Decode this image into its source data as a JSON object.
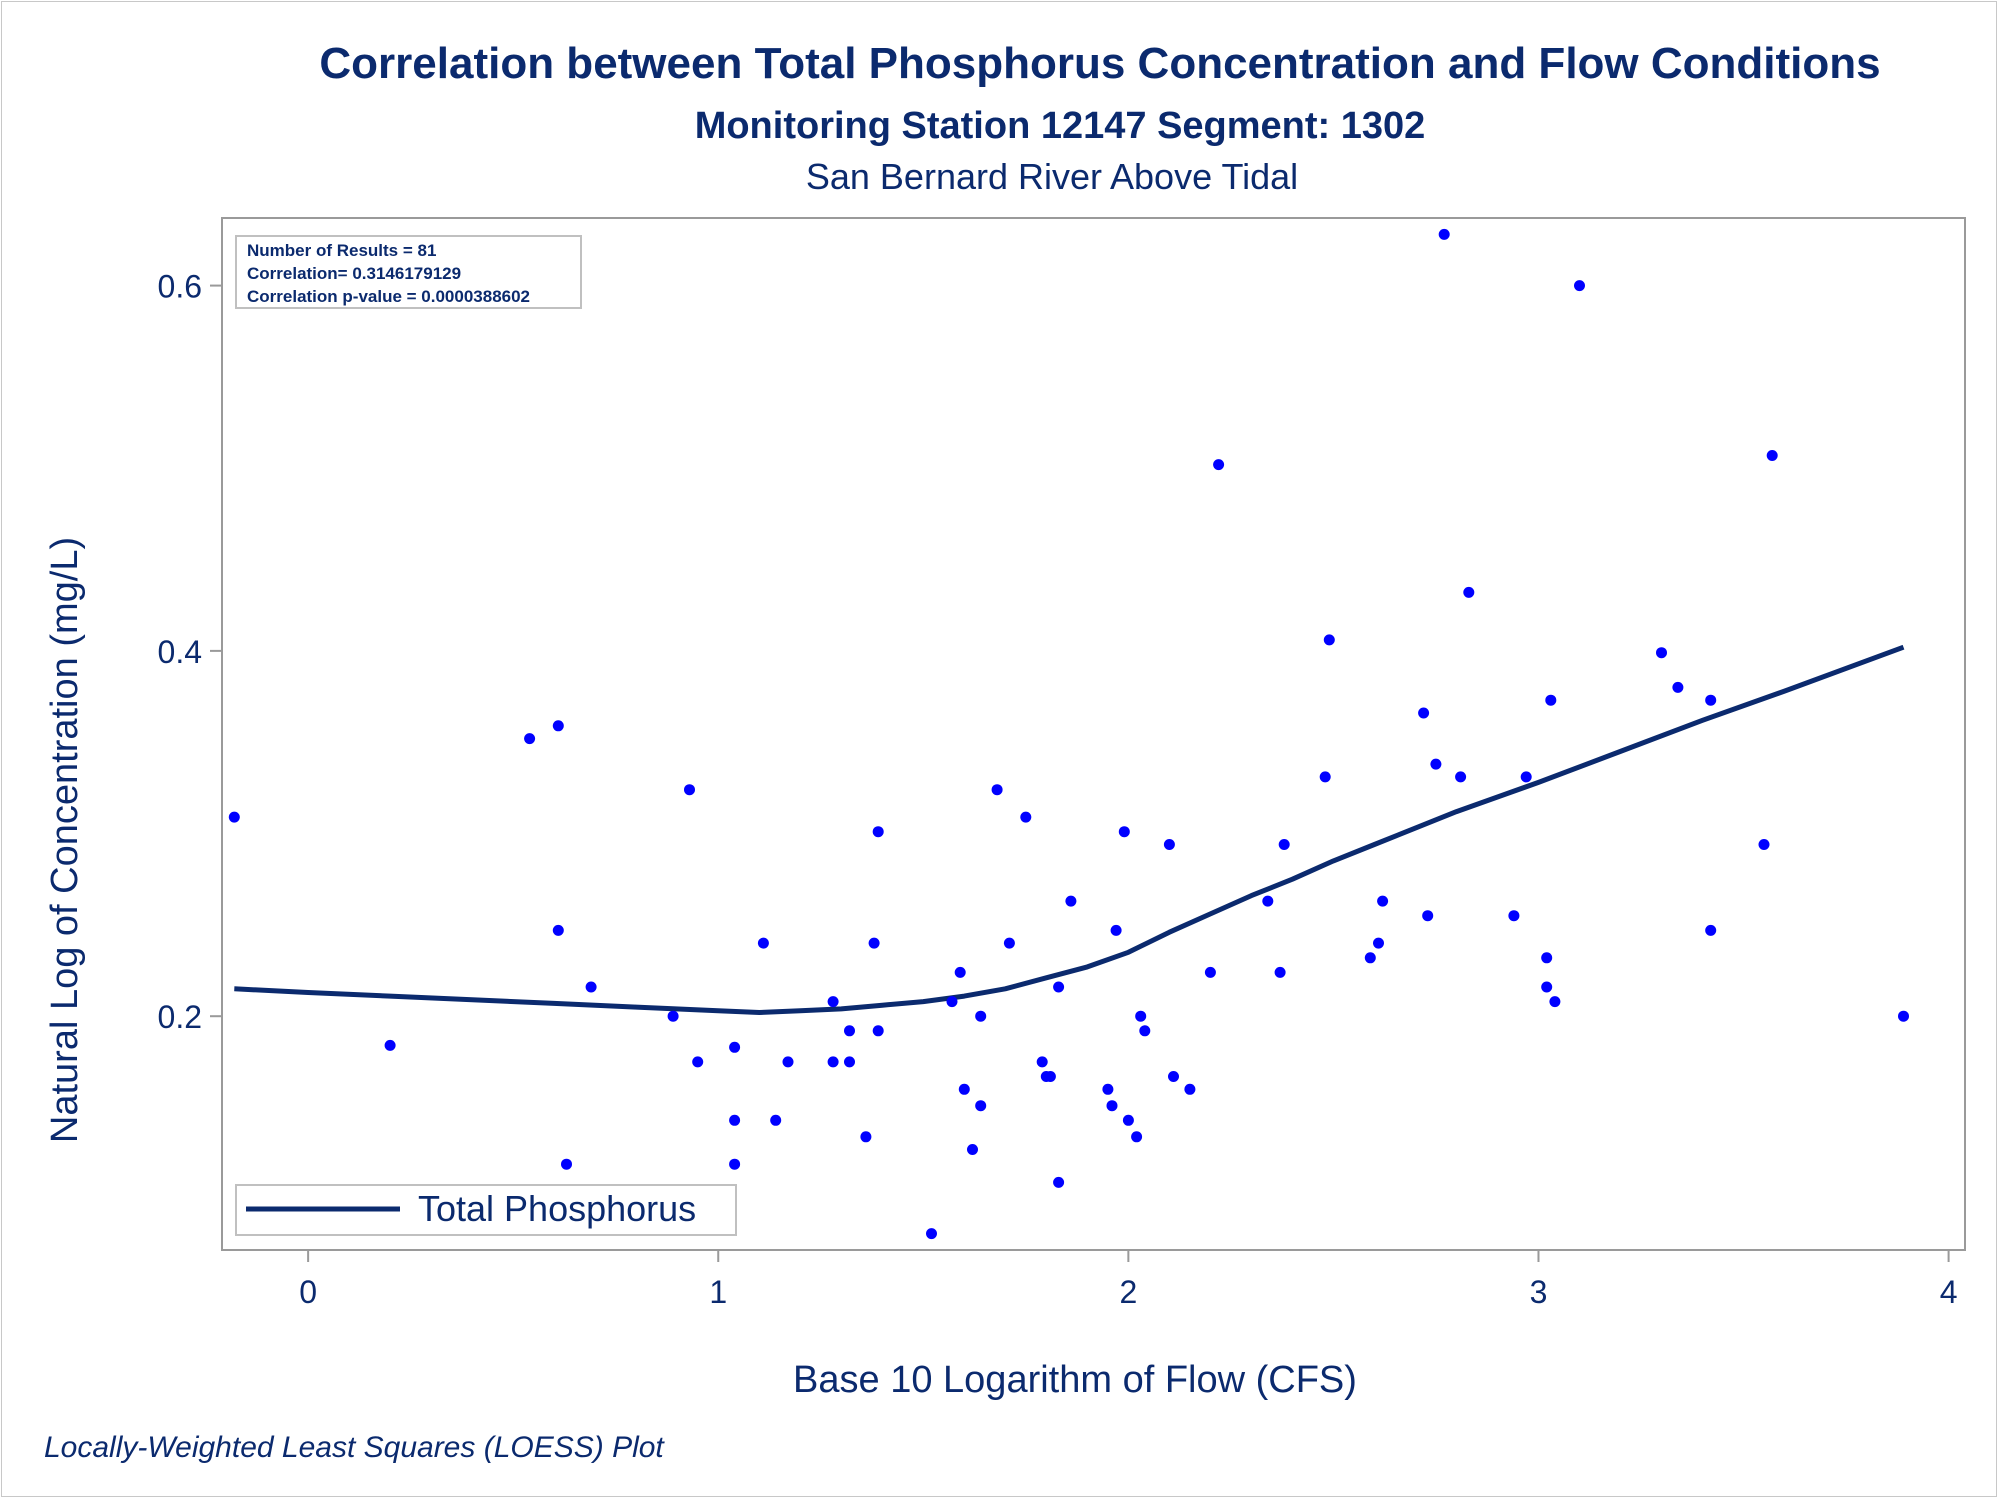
{
  "chart_data": {
    "type": "scatter",
    "title": "Correlation between Total Phosphorus Concentration and Flow Conditions",
    "subtitle": "Monitoring Station 12147 Segment: 1302",
    "subtitle2": "San Bernard River Above Tidal",
    "xlabel": "Base 10 Logarithm of Flow (CFS)",
    "ylabel": "Natural Log of Concentration (mg/L)",
    "footnote": "Locally-Weighted Least Squares (LOESS) Plot",
    "xlim": [
      -0.21,
      4.04
    ],
    "ylim": [
      0.072,
      0.637
    ],
    "x_ticks": [
      "0",
      "1",
      "2",
      "3",
      "4"
    ],
    "y_ticks": [
      "0.2",
      "0.4",
      "0.6"
    ],
    "stats": [
      "Number of Results = 81",
      "Correlation= 0.3146179129",
      "Correlation p-value = 0.0000388602"
    ],
    "legend": {
      "label": "Total Phosphorus",
      "position": "bottom-left"
    },
    "grid": false,
    "colors": {
      "points": "#0000ff",
      "line": "#0b2a6e",
      "text": "#0b2a6e",
      "axis": "#9a9a9a"
    },
    "points": [
      [
        -0.18,
        0.309
      ],
      [
        0.2,
        0.184
      ],
      [
        0.54,
        0.352
      ],
      [
        0.61,
        0.359
      ],
      [
        0.61,
        0.247
      ],
      [
        0.63,
        0.119
      ],
      [
        0.69,
        0.216
      ],
      [
        0.89,
        0.2
      ],
      [
        0.93,
        0.324
      ],
      [
        0.95,
        0.175
      ],
      [
        1.04,
        0.183
      ],
      [
        1.04,
        0.143
      ],
      [
        1.04,
        0.119
      ],
      [
        1.11,
        0.24
      ],
      [
        1.14,
        0.143
      ],
      [
        1.17,
        0.175
      ],
      [
        1.28,
        0.175
      ],
      [
        1.28,
        0.208
      ],
      [
        1.32,
        0.192
      ],
      [
        1.32,
        0.175
      ],
      [
        1.36,
        0.134
      ],
      [
        1.38,
        0.24
      ],
      [
        1.39,
        0.192
      ],
      [
        1.39,
        0.301
      ],
      [
        1.52,
        0.081
      ],
      [
        1.57,
        0.208
      ],
      [
        1.59,
        0.224
      ],
      [
        1.6,
        0.16
      ],
      [
        1.62,
        0.127
      ],
      [
        1.64,
        0.2
      ],
      [
        1.64,
        0.151
      ],
      [
        1.68,
        0.324
      ],
      [
        1.71,
        0.24
      ],
      [
        1.75,
        0.309
      ],
      [
        1.79,
        0.175
      ],
      [
        1.8,
        0.167
      ],
      [
        1.81,
        0.167
      ],
      [
        1.83,
        0.216
      ],
      [
        1.83,
        0.109
      ],
      [
        1.86,
        0.263
      ],
      [
        1.95,
        0.16
      ],
      [
        1.96,
        0.151
      ],
      [
        1.97,
        0.247
      ],
      [
        1.99,
        0.301
      ],
      [
        2.0,
        0.143
      ],
      [
        2.02,
        0.134
      ],
      [
        2.03,
        0.2
      ],
      [
        2.04,
        0.192
      ],
      [
        2.1,
        0.294
      ],
      [
        2.11,
        0.167
      ],
      [
        2.15,
        0.16
      ],
      [
        2.2,
        0.224
      ],
      [
        2.22,
        0.502
      ],
      [
        2.34,
        0.263
      ],
      [
        2.37,
        0.224
      ],
      [
        2.38,
        0.294
      ],
      [
        2.48,
        0.331
      ],
      [
        2.49,
        0.406
      ],
      [
        2.59,
        0.232
      ],
      [
        2.61,
        0.24
      ],
      [
        2.62,
        0.263
      ],
      [
        2.72,
        0.366
      ],
      [
        2.73,
        0.255
      ],
      [
        2.75,
        0.338
      ],
      [
        2.77,
        0.628
      ],
      [
        2.81,
        0.331
      ],
      [
        2.83,
        0.432
      ],
      [
        2.94,
        0.255
      ],
      [
        2.97,
        0.331
      ],
      [
        3.02,
        0.232
      ],
      [
        3.02,
        0.216
      ],
      [
        3.03,
        0.373
      ],
      [
        3.04,
        0.208
      ],
      [
        3.1,
        0.6
      ],
      [
        3.3,
        0.399
      ],
      [
        3.34,
        0.38
      ],
      [
        3.42,
        0.373
      ],
      [
        3.42,
        0.247
      ],
      [
        3.55,
        0.294
      ],
      [
        3.57,
        0.507
      ],
      [
        3.89,
        0.2
      ]
    ],
    "loess": [
      [
        -0.18,
        0.215
      ],
      [
        0.0,
        0.213
      ],
      [
        0.2,
        0.211
      ],
      [
        0.4,
        0.209
      ],
      [
        0.6,
        0.207
      ],
      [
        0.8,
        0.205
      ],
      [
        1.0,
        0.203
      ],
      [
        1.1,
        0.202
      ],
      [
        1.2,
        0.203
      ],
      [
        1.3,
        0.204
      ],
      [
        1.4,
        0.206
      ],
      [
        1.5,
        0.208
      ],
      [
        1.6,
        0.211
      ],
      [
        1.7,
        0.215
      ],
      [
        1.8,
        0.221
      ],
      [
        1.9,
        0.227
      ],
      [
        2.0,
        0.235
      ],
      [
        2.1,
        0.246
      ],
      [
        2.2,
        0.256
      ],
      [
        2.3,
        0.266
      ],
      [
        2.4,
        0.275
      ],
      [
        2.5,
        0.285
      ],
      [
        2.6,
        0.294
      ],
      [
        2.7,
        0.303
      ],
      [
        2.8,
        0.312
      ],
      [
        2.9,
        0.32
      ],
      [
        3.0,
        0.328
      ],
      [
        3.2,
        0.345
      ],
      [
        3.4,
        0.362
      ],
      [
        3.6,
        0.378
      ],
      [
        3.89,
        0.402
      ]
    ]
  }
}
